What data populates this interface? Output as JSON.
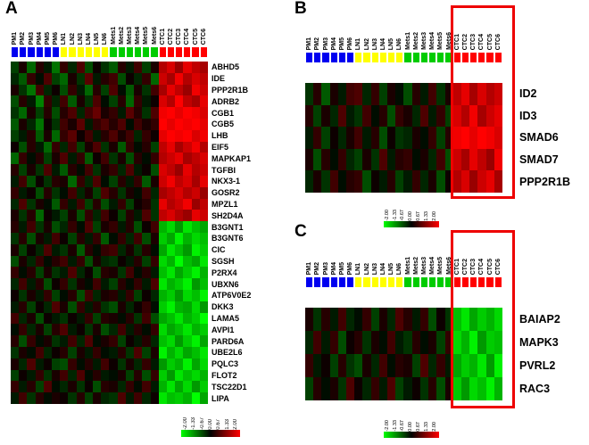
{
  "chart_data": [
    {
      "type": "heatmap",
      "panel": "A",
      "columns": [
        "PM1",
        "PM2",
        "PM3",
        "PM4",
        "PM5",
        "PM6",
        "LN1",
        "LN2",
        "LN3",
        "LN4",
        "LN5",
        "LN6",
        "Mets1",
        "Mets2",
        "Mets3",
        "Mets4",
        "Mets5",
        "Mets6",
        "CTC1",
        "CTC2",
        "CTC3",
        "CTC4",
        "CTC5",
        "CTC6"
      ],
      "groups": [
        {
          "name": "PM",
          "color": "#0000F0",
          "count": 6
        },
        {
          "name": "LN",
          "color": "#FFFF00",
          "count": 6
        },
        {
          "name": "Mets",
          "color": "#00CC00",
          "count": 6
        },
        {
          "name": "CTC",
          "color": "#FF0000",
          "count": 6
        }
      ],
      "rows": [
        "ABHD5",
        "IDE",
        "PPP2R1B",
        "ADRB2",
        "CGB1",
        "CGB5",
        "LHB",
        "EIF5",
        "MAPKAP1",
        "TGFBI",
        "NKX3-1",
        "GOSR2",
        "MPZL1",
        "SH2D4A",
        "B3GNT1",
        "B3GNT6",
        "CIC",
        "SGSH",
        "P2RX4",
        "UBXN6",
        "ATP6V0E2",
        "DKK3",
        "LAMA5",
        "AVPI1",
        "PARD6A",
        "UBE2L6",
        "PQLC3",
        "FLOT2",
        "TSC22D1",
        "LIPA"
      ],
      "values": [
        [
          -0.5,
          0.2,
          -0.8,
          0.3,
          -0.2,
          -0.9,
          0.4,
          -0.3,
          0.6,
          -0.6,
          0.1,
          -0.4,
          -0.7,
          0.3,
          -0.2,
          0.5,
          -0.5,
          0.2,
          1.4,
          1.7,
          1.2,
          1.8,
          1.5,
          1.3
        ],
        [
          -0.3,
          -0.7,
          0.4,
          -0.1,
          0.6,
          -0.5,
          -0.8,
          0.2,
          -0.4,
          0.7,
          -0.2,
          0.3,
          0.5,
          -0.6,
          0.1,
          -0.3,
          0.4,
          -0.8,
          1.6,
          1.3,
          1.9,
          1.4,
          1.7,
          1.5
        ],
        [
          0.2,
          -0.4,
          -0.9,
          0.5,
          -0.3,
          0.1,
          -0.6,
          0.4,
          -0.2,
          -0.8,
          0.3,
          -0.5,
          0.6,
          -0.1,
          -0.7,
          0.2,
          -0.4,
          0.5,
          1.3,
          1.8,
          1.5,
          1.2,
          1.9,
          1.6
        ],
        [
          -0.6,
          0.3,
          -0.2,
          -1.0,
          0.4,
          -0.3,
          0.5,
          -0.7,
          0.2,
          -0.4,
          0.6,
          -0.1,
          -0.5,
          0.3,
          -0.8,
          0.4,
          -0.2,
          0.1,
          1.7,
          1.4,
          2.0,
          1.5,
          1.3,
          1.8
        ],
        [
          -0.4,
          -0.8,
          0.2,
          -0.5,
          0.3,
          -0.6,
          0.3,
          0.6,
          -0.3,
          0.5,
          0.8,
          0.2,
          0.4,
          -0.2,
          0.7,
          0.3,
          -0.4,
          0.6,
          1.9,
          2.0,
          1.8,
          2.0,
          1.9,
          1.7
        ],
        [
          -0.7,
          0.2,
          -0.3,
          -0.9,
          0.1,
          -0.4,
          0.5,
          0.2,
          0.7,
          -0.2,
          0.4,
          0.6,
          0.3,
          0.6,
          -0.1,
          0.5,
          0.2,
          0.4,
          2.0,
          1.8,
          2.0,
          1.9,
          2.0,
          1.8
        ],
        [
          -0.5,
          -0.2,
          0.3,
          -0.7,
          0.2,
          -0.8,
          0.4,
          0.7,
          0.1,
          0.5,
          -0.2,
          0.3,
          0.6,
          0.2,
          0.5,
          -0.3,
          0.4,
          0.1,
          1.8,
          2.0,
          1.9,
          2.0,
          1.7,
          1.9
        ],
        [
          0.1,
          -0.6,
          0.3,
          -0.2,
          -0.8,
          0.4,
          -0.3,
          0.5,
          -0.5,
          0.2,
          0.6,
          -0.4,
          0.2,
          -0.7,
          0.4,
          -0.1,
          0.3,
          -0.5,
          1.5,
          1.8,
          1.3,
          1.6,
          1.9,
          1.4
        ],
        [
          -0.8,
          0.4,
          -0.1,
          0.3,
          -0.5,
          0.2,
          0.6,
          -0.2,
          0.4,
          -0.7,
          0.1,
          0.5,
          -0.4,
          0.2,
          -0.6,
          0.3,
          -0.1,
          0.4,
          1.4,
          1.6,
          1.8,
          1.3,
          1.5,
          1.7
        ],
        [
          0.3,
          -0.5,
          0.2,
          -0.4,
          0.6,
          -0.2,
          -0.7,
          0.3,
          -0.1,
          0.5,
          -0.4,
          0.2,
          0.4,
          -0.3,
          0.6,
          -0.2,
          0.1,
          -0.6,
          1.7,
          1.5,
          1.2,
          1.8,
          1.4,
          1.6
        ],
        [
          -0.2,
          0.5,
          -0.6,
          0.1,
          -0.4,
          0.3,
          0.2,
          -0.8,
          0.4,
          -0.3,
          0.6,
          -0.1,
          -0.5,
          0.3,
          -0.2,
          0.4,
          -0.7,
          0.2,
          1.6,
          1.9,
          1.5,
          1.7,
          1.3,
          1.8
        ],
        [
          0.4,
          -0.2,
          0.1,
          -0.6,
          0.3,
          -0.4,
          -0.1,
          0.5,
          -0.3,
          0.2,
          -0.5,
          0.6,
          0.3,
          -0.4,
          0.2,
          -0.1,
          0.5,
          -0.3,
          1.3,
          1.5,
          1.7,
          1.4,
          1.6,
          1.2
        ],
        [
          -0.3,
          0.6,
          -0.4,
          0.2,
          -0.1,
          -0.7,
          0.4,
          -0.2,
          0.5,
          -0.5,
          0.3,
          -0.6,
          -0.2,
          0.4,
          -0.5,
          0.1,
          0.3,
          -0.4,
          1.8,
          1.4,
          1.6,
          1.9,
          1.2,
          1.5
        ],
        [
          0.2,
          -0.4,
          0.3,
          -0.8,
          0.1,
          -0.2,
          -0.5,
          0.2,
          -0.6,
          0.4,
          -0.3,
          0.5,
          0.1,
          -0.5,
          0.3,
          -0.2,
          0.6,
          -0.4,
          1.5,
          1.7,
          1.4,
          1.2,
          1.8,
          1.6
        ],
        [
          0.3,
          -0.2,
          0.5,
          -0.4,
          0.2,
          -0.6,
          -0.3,
          0.4,
          -0.1,
          0.6,
          -0.5,
          0.2,
          0.4,
          -0.2,
          0.3,
          -0.6,
          0.1,
          0.5,
          -1.4,
          -1.7,
          -1.2,
          -1.8,
          -1.5,
          -1.3
        ],
        [
          -0.4,
          0.3,
          -0.6,
          0.2,
          -0.2,
          0.5,
          0.1,
          -0.5,
          0.3,
          -0.2,
          0.4,
          -0.7,
          -0.1,
          0.4,
          -0.3,
          0.5,
          -0.6,
          0.2,
          -1.6,
          -1.3,
          -1.9,
          -1.4,
          -1.7,
          -1.5
        ],
        [
          0.2,
          -0.5,
          0.1,
          -0.3,
          0.6,
          -0.2,
          -0.4,
          0.2,
          -0.7,
          0.3,
          -0.1,
          0.4,
          0.5,
          -0.3,
          0.2,
          -0.4,
          0.3,
          -0.1,
          -1.3,
          -1.8,
          -1.5,
          -1.2,
          -1.9,
          -1.6
        ],
        [
          -0.6,
          0.2,
          -0.3,
          0.4,
          -0.1,
          0.3,
          0.5,
          -0.2,
          0.4,
          -0.6,
          0.2,
          -0.3,
          -0.4,
          0.1,
          -0.2,
          0.3,
          -0.5,
          0.4,
          -1.7,
          -1.4,
          -2.0,
          -1.5,
          -1.3,
          -1.8
        ],
        [
          0.4,
          -0.1,
          0.3,
          -0.5,
          0.2,
          -0.4,
          -0.2,
          0.6,
          -0.3,
          0.1,
          -0.6,
          0.3,
          0.2,
          -0.4,
          0.5,
          -0.1,
          0.3,
          -0.2,
          -1.5,
          -1.8,
          -1.3,
          -1.6,
          -1.9,
          -1.4
        ],
        [
          -0.3,
          0.5,
          -0.2,
          0.3,
          -0.6,
          0.1,
          0.4,
          -0.4,
          0.2,
          -0.1,
          0.5,
          -0.2,
          -0.5,
          0.3,
          -0.1,
          0.4,
          -0.2,
          0.6,
          -1.8,
          -1.4,
          -1.6,
          -1.9,
          -1.2,
          -1.5
        ],
        [
          0.1,
          -0.4,
          0.2,
          -0.2,
          0.4,
          -0.5,
          -0.1,
          0.3,
          -0.6,
          0.5,
          -0.3,
          0.2,
          0.3,
          -0.2,
          0.4,
          -0.5,
          0.1,
          -0.3,
          -1.4,
          -1.6,
          -1.2,
          -1.7,
          -1.5,
          -1.9
        ],
        [
          -0.2,
          0.3,
          -0.5,
          0.1,
          -0.3,
          0.6,
          0.2,
          -0.6,
          0.4,
          -0.2,
          0.3,
          -0.4,
          -0.6,
          0.2,
          -0.3,
          0.1,
          0.4,
          -0.1,
          -1.6,
          -1.9,
          -1.4,
          -1.3,
          -1.7,
          -1.2
        ],
        [
          0.5,
          -0.3,
          0.2,
          -0.6,
          0.1,
          -0.2,
          -0.4,
          0.1,
          -0.2,
          0.4,
          -0.5,
          0.3,
          0.2,
          -0.1,
          0.3,
          -0.4,
          0.5,
          -0.6,
          -1.3,
          -1.5,
          -1.8,
          -1.4,
          -1.6,
          -2.0
        ],
        [
          -0.1,
          0.4,
          -0.3,
          0.2,
          -0.5,
          0.3,
          0.6,
          -0.2,
          0.1,
          -0.4,
          0.2,
          -0.6,
          -0.3,
          0.5,
          -0.2,
          0.3,
          -0.1,
          0.4,
          -1.7,
          -1.3,
          -1.5,
          -1.8,
          -1.4,
          -1.6
        ],
        [
          0.3,
          -0.6,
          0.4,
          -0.1,
          0.2,
          -0.4,
          -0.2,
          0.5,
          -0.3,
          0.6,
          -0.1,
          0.2,
          0.4,
          -0.5,
          0.1,
          -0.2,
          0.3,
          -0.3,
          -1.5,
          -1.7,
          -1.2,
          -1.6,
          -1.9,
          -1.3
        ],
        [
          -0.4,
          0.2,
          -0.1,
          0.5,
          -0.3,
          0.1,
          0.3,
          -0.5,
          0.2,
          -0.2,
          0.4,
          -0.1,
          -0.2,
          0.3,
          -0.4,
          0.6,
          -0.5,
          0.2,
          -1.9,
          -1.4,
          -1.7,
          -1.3,
          -1.5,
          -1.8
        ],
        [
          0.2,
          -0.3,
          0.6,
          -0.2,
          0.1,
          -0.5,
          -0.6,
          0.4,
          -0.1,
          0.3,
          -0.2,
          0.5,
          0.1,
          -0.4,
          0.2,
          -0.3,
          0.4,
          -0.2,
          -1.2,
          -1.6,
          -1.4,
          -1.9,
          -1.3,
          -1.7
        ],
        [
          -0.5,
          0.1,
          -0.2,
          0.4,
          -0.4,
          0.2,
          0.5,
          -0.3,
          0.6,
          -0.1,
          0.3,
          -0.2,
          -0.1,
          0.2,
          -0.5,
          0.3,
          -0.6,
          0.4,
          -1.6,
          -1.2,
          -1.8,
          -1.5,
          -1.7,
          -1.4
        ],
        [
          0.4,
          -0.2,
          0.3,
          -0.5,
          0.6,
          -0.1,
          -0.3,
          0.2,
          -0.4,
          0.1,
          -0.6,
          0.3,
          0.2,
          -0.3,
          0.4,
          -0.1,
          0.5,
          -0.2,
          -1.4,
          -1.8,
          -1.3,
          -1.7,
          -1.2,
          -1.6
        ],
        [
          -0.2,
          0.5,
          -0.4,
          0.3,
          -0.1,
          0.2,
          0.1,
          -0.4,
          0.3,
          -0.5,
          0.2,
          -0.3,
          -0.4,
          0.6,
          -0.2,
          0.5,
          -0.3,
          0.1,
          -1.8,
          -1.5,
          -1.6,
          -1.4,
          -2.0,
          -1.3
        ]
      ],
      "scale": {
        "min": -2,
        "max": 2,
        "ticks": [
          "-2.00",
          "-1.33",
          "-0.67",
          "0.00",
          "0.67",
          "1.33",
          "2.00"
        ],
        "colors": [
          "#00FF00",
          "#000000",
          "#FF0000"
        ]
      }
    },
    {
      "type": "heatmap",
      "panel": "B",
      "columns": [
        "PM1",
        "PM2",
        "PM3",
        "PM4",
        "PM5",
        "PM6",
        "LN1",
        "LN2",
        "LN3",
        "LN4",
        "LN5",
        "LN6",
        "Mets1",
        "Mets2",
        "Mets3",
        "Mets4",
        "Mets5",
        "Mets6",
        "CTC1",
        "CTC2",
        "CTC3",
        "CTC4",
        "CTC5",
        "CTC6"
      ],
      "groups": [
        {
          "name": "PM",
          "color": "#0000F0",
          "count": 6
        },
        {
          "name": "LN",
          "color": "#FFFF00",
          "count": 6
        },
        {
          "name": "Mets",
          "color": "#00CC00",
          "count": 6
        },
        {
          "name": "CTC",
          "color": "#FF0000",
          "count": 6
        }
      ],
      "rows": [
        "ID2",
        "ID3",
        "SMAD6",
        "SMAD7",
        "PPP2R1B"
      ],
      "values": [
        [
          -0.4,
          0.3,
          -0.7,
          0.2,
          -0.2,
          0.5,
          0.6,
          -0.3,
          0.4,
          -0.5,
          0.2,
          -0.1,
          -0.6,
          0.3,
          -0.2,
          0.5,
          -0.4,
          0.2,
          1.5,
          1.8,
          1.3,
          1.7,
          1.4,
          1.6
        ],
        [
          0.3,
          -0.5,
          0.2,
          -0.3,
          0.6,
          -0.2,
          -0.4,
          0.5,
          -0.1,
          0.3,
          -0.6,
          0.4,
          0.2,
          -0.3,
          0.6,
          -0.2,
          0.4,
          -0.5,
          1.7,
          1.4,
          1.9,
          1.3,
          1.6,
          1.8
        ],
        [
          -0.2,
          0.4,
          -0.5,
          0.1,
          -0.3,
          0.2,
          0.5,
          -0.2,
          0.3,
          -0.6,
          0.1,
          -0.4,
          -0.3,
          0.2,
          -0.1,
          0.4,
          -0.5,
          0.3,
          1.9,
          2.0,
          1.8,
          2.0,
          1.9,
          1.7
        ],
        [
          0.2,
          -0.6,
          0.3,
          -0.1,
          0.4,
          -0.3,
          -0.5,
          0.2,
          -0.4,
          0.6,
          -0.2,
          0.3,
          0.4,
          -0.1,
          0.2,
          -0.3,
          0.5,
          -0.6,
          1.6,
          1.3,
          1.8,
          1.5,
          1.2,
          1.9
        ],
        [
          -0.3,
          0.2,
          -0.4,
          0.5,
          -0.1,
          0.3,
          0.4,
          -0.6,
          0.1,
          -0.2,
          0.3,
          -0.5,
          -0.2,
          0.4,
          -0.3,
          0.2,
          -0.6,
          0.1,
          1.4,
          1.7,
          1.2,
          1.6,
          1.8,
          1.3
        ]
      ],
      "highlight_group": "CTC",
      "scale": {
        "min": -2,
        "max": 2,
        "ticks": [
          "-2.00",
          "-1.33",
          "-0.67",
          "0.00",
          "0.67",
          "1.33",
          "2.00"
        ],
        "colors": [
          "#00FF00",
          "#000000",
          "#FF0000"
        ]
      }
    },
    {
      "type": "heatmap",
      "panel": "C",
      "columns": [
        "PM1",
        "PM2",
        "PM3",
        "PM4",
        "PM5",
        "PM6",
        "LN1",
        "LN2",
        "LN3",
        "LN4",
        "LN5",
        "LN6",
        "Mets1",
        "Mets2",
        "Mets3",
        "Mets4",
        "Mets5",
        "Mets6",
        "CTC1",
        "CTC2",
        "CTC3",
        "CTC4",
        "CTC5",
        "CTC6"
      ],
      "groups": [
        {
          "name": "PM",
          "color": "#0000F0",
          "count": 6
        },
        {
          "name": "LN",
          "color": "#FFFF00",
          "count": 6
        },
        {
          "name": "Mets",
          "color": "#00CC00",
          "count": 6
        },
        {
          "name": "CTC",
          "color": "#FF0000",
          "count": 6
        }
      ],
      "rows": [
        "BAIAP2",
        "MAPK3",
        "PVRL2",
        "RAC3"
      ],
      "values": [
        [
          0.2,
          -0.4,
          0.3,
          -0.2,
          0.5,
          -0.3,
          -0.1,
          0.4,
          -0.5,
          0.2,
          -0.3,
          0.6,
          0.3,
          -0.2,
          0.4,
          -0.6,
          0.1,
          -0.4,
          -1.5,
          -1.8,
          -1.3,
          -1.6,
          -1.4,
          -1.7
        ],
        [
          -0.3,
          0.5,
          -0.2,
          0.4,
          -0.6,
          0.1,
          0.3,
          -0.4,
          0.2,
          -0.1,
          0.5,
          -0.2,
          -0.4,
          0.3,
          -0.1,
          0.2,
          -0.5,
          0.4,
          -1.7,
          -1.4,
          -1.9,
          -1.2,
          -1.6,
          -1.5
        ],
        [
          0.4,
          -0.2,
          0.1,
          -0.5,
          0.3,
          -0.4,
          -0.6,
          0.2,
          -0.3,
          0.5,
          -0.1,
          0.3,
          0.2,
          -0.5,
          0.6,
          -0.3,
          0.4,
          -0.2,
          -1.3,
          -1.6,
          -1.4,
          -1.8,
          -1.2,
          -1.9
        ],
        [
          -0.5,
          0.3,
          -0.1,
          0.2,
          -0.4,
          0.6,
          0.1,
          -0.3,
          0.4,
          -0.2,
          0.6,
          -0.5,
          -0.2,
          0.1,
          -0.4,
          0.3,
          -0.6,
          0.2,
          -1.6,
          -1.2,
          -1.7,
          -1.5,
          -1.9,
          -1.4
        ]
      ],
      "highlight_group": "CTC",
      "scale": {
        "min": -2,
        "max": 2,
        "ticks": [
          "-2.00",
          "-1.33",
          "-0.67",
          "0.00",
          "0.67",
          "1.33",
          "2.00"
        ],
        "colors": [
          "#00FF00",
          "#000000",
          "#FF0000"
        ]
      }
    }
  ]
}
